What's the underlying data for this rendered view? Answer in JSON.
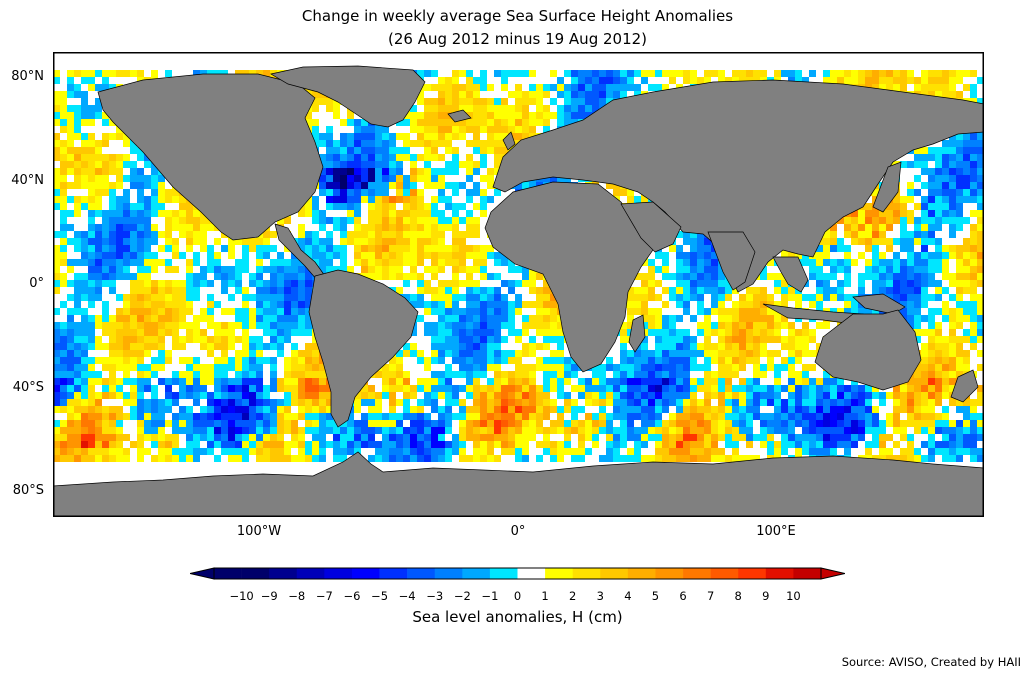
{
  "title_line1": "Change in weekly average Sea Surface Height Anomalies",
  "title_line2": "(26 Aug 2012 minus 19 Aug 2012)",
  "lat_labels": [
    "80°N",
    "40°N",
    "0°",
    "40°S",
    "80°S"
  ],
  "lon_labels": [
    "100°W",
    "0°",
    "100°E"
  ],
  "colorbar": {
    "ticks": [
      "−10",
      "−9",
      "−8",
      "−7",
      "−6",
      "−5",
      "−4",
      "−3",
      "−2",
      "−1",
      "0",
      "1",
      "2",
      "3",
      "4",
      "5",
      "6",
      "7",
      "8",
      "9",
      "10"
    ],
    "colors": [
      "#00006a",
      "#00008f",
      "#0000b8",
      "#0000e0",
      "#0000ff",
      "#0030ff",
      "#0058ff",
      "#0080ff",
      "#00a8ff",
      "#00e6ff",
      "#ffffff",
      "#ffff00",
      "#ffe100",
      "#ffc800",
      "#ffae00",
      "#ff9400",
      "#ff7800",
      "#ff5a00",
      "#ff3600",
      "#e31000",
      "#c40000"
    ],
    "label": "Sea level anomalies, H (cm)"
  },
  "colors": {
    "land": "#808080",
    "no_data": "#ffffff",
    "frame": "#000000"
  },
  "source": "Source: AVISO, Created by HAII"
}
